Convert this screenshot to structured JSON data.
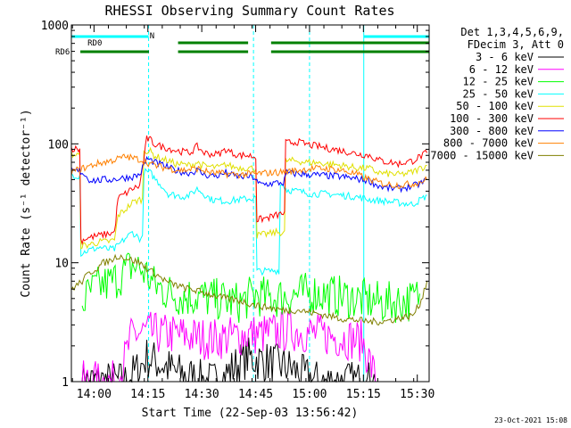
{
  "chart_data": {
    "type": "line",
    "title": "RHESSI Observing Summary Count Rates",
    "xlabel": "Start Time (22-Sep-03 13:56:42)",
    "ylabel": "Count Rate (s⁻¹ detector⁻¹)",
    "yscale": "log",
    "ylim": [
      1,
      1000
    ],
    "xlim_min": [
      -3,
      64
    ],
    "x_ticks": [
      {
        "label": "14:00",
        "min": 3.3
      },
      {
        "label": "14:15",
        "min": 18.3
      },
      {
        "label": "14:30",
        "min": 33.3
      },
      {
        "label": "14:45",
        "min": 48.3
      },
      {
        "label": "15:00",
        "min": 63.3
      },
      {
        "label": "15:15",
        "min": 78.3
      },
      {
        "label": "15:30",
        "min": 93.3
      }
    ],
    "y_ticks": [
      {
        "label": "1",
        "value": 1
      },
      {
        "label": "10",
        "value": 10
      },
      {
        "label": "100",
        "value": 100
      },
      {
        "label": "1000",
        "value": 1000
      }
    ],
    "legend_header": [
      "Det 1,3,4,5,6,9,",
      "FDecim 3, Att 0"
    ],
    "legend_placement": "right",
    "timestamp": "23-Oct-2021 15:08",
    "flags": [
      {
        "label": "N",
        "color": "#00ffff",
        "segments": [
          [
            -3,
            18.5
          ],
          [
            78.4,
            96.6
          ]
        ]
      },
      {
        "label": "RD0",
        "color": "#008000",
        "segments": [
          [
            -0.5,
            18.6
          ],
          [
            26.7,
            46.2
          ],
          [
            52.6,
            96.6
          ]
        ]
      },
      {
        "label": "RD6",
        "color": "#008000",
        "segments": [
          [
            -0.5,
            18.6
          ],
          [
            26.7,
            46.2
          ],
          [
            52.6,
            96.6
          ]
        ]
      }
    ],
    "night_markers": [
      -3,
      18.5,
      47.7,
      63.3,
      78.4,
      96.6
    ],
    "series": [
      {
        "name": "3 - 6 keV",
        "color": "#000000",
        "x": [
          0,
          4,
          8,
          10,
          12,
          16,
          18,
          20,
          22,
          26,
          30,
          34,
          38,
          42,
          46,
          50,
          54,
          58,
          62,
          66,
          70,
          74,
          78,
          82
        ],
        "y": [
          1,
          1,
          1,
          1,
          1,
          1.3,
          1.6,
          1.5,
          1.4,
          1.2,
          1.1,
          1,
          1,
          1.3,
          1.6,
          1.5,
          1.4,
          1.3,
          1.1,
          1,
          1,
          1,
          1,
          1
        ]
      },
      {
        "name": "6 - 12 keV",
        "color": "#ff00ff",
        "x": [
          0,
          10,
          14,
          18,
          22,
          26,
          30,
          34,
          38,
          42,
          46,
          50,
          54,
          58,
          62,
          66,
          70,
          74,
          78,
          82
        ],
        "y": [
          1,
          1,
          2.5,
          2.6,
          2.5,
          2.5,
          2.4,
          2.3,
          2.3,
          2.4,
          2.5,
          2.5,
          2.6,
          2.7,
          2.6,
          2.5,
          2.4,
          2.3,
          2.2,
          1
        ]
      },
      {
        "name": "12 - 25 keV",
        "color": "#00ff00",
        "x": [
          0,
          2,
          4,
          6,
          8,
          10,
          12,
          14,
          16,
          18,
          20,
          24,
          28,
          32,
          36,
          40,
          44,
          48,
          52,
          56,
          60,
          64,
          68,
          72,
          76,
          80,
          84,
          88,
          92,
          94
        ],
        "y": [
          4.5,
          5.5,
          6.2,
          6.5,
          6.8,
          7.5,
          8.5,
          9.5,
          9.0,
          8.0,
          6.5,
          5.6,
          5.2,
          5.2,
          5.0,
          4.8,
          4.6,
          5.4,
          5.0,
          5.2,
          5.4,
          5.6,
          5.4,
          5.2,
          5.0,
          4.8,
          4.6,
          4.7,
          4.8,
          5.5
        ]
      },
      {
        "name": "25 - 50 keV",
        "color": "#00ffff",
        "x": [
          -3,
          -1,
          0,
          1,
          3,
          5,
          7,
          9,
          10,
          12,
          14,
          16,
          18,
          19,
          20,
          22,
          24,
          28,
          30,
          32,
          36,
          40,
          44,
          48,
          49,
          52,
          54,
          56,
          57,
          60,
          62,
          64,
          68,
          72,
          76,
          80,
          84,
          88,
          92,
          95,
          96
        ],
        "y": [
          55,
          54,
          12,
          12.5,
          13,
          13.5,
          13,
          13,
          14,
          16,
          18,
          16,
          58,
          57,
          52,
          45,
          38,
          36,
          37,
          42,
          34,
          33,
          34,
          35,
          8.5,
          8.5,
          8.6,
          45,
          41,
          40,
          39,
          38,
          38,
          37,
          36,
          34,
          33,
          32,
          31,
          35,
          37
        ]
      },
      {
        "name": "50 - 100 keV",
        "color": "#e0e000",
        "x": [
          -3,
          -1,
          0,
          1,
          3,
          5,
          7,
          9,
          10,
          12,
          14,
          16,
          18,
          19,
          20,
          22,
          24,
          26,
          28,
          30,
          32,
          34,
          36,
          38,
          40,
          42,
          44,
          46,
          48,
          49,
          52,
          54,
          56,
          57,
          60,
          62,
          64,
          66,
          68,
          72,
          76,
          80,
          82,
          84,
          86,
          88,
          90,
          92,
          94,
          96
        ],
        "y": [
          82,
          80,
          14,
          14,
          14.5,
          15,
          15,
          15.5,
          25,
          28,
          32,
          34,
          88,
          86,
          80,
          75,
          72,
          68,
          67,
          66,
          70,
          65,
          64,
          63,
          67,
          64,
          63,
          63,
          62,
          17,
          17.5,
          18,
          18,
          72,
          72,
          70,
          70,
          69,
          68,
          66,
          63,
          62,
          58,
          56,
          56,
          55,
          56,
          58,
          62,
          66
        ]
      },
      {
        "name": "100 - 300 keV",
        "color": "#ff0000",
        "x": [
          -3,
          -1,
          0,
          1,
          3,
          5,
          7,
          9,
          10,
          12,
          14,
          16,
          18,
          19,
          20,
          22,
          24,
          26,
          28,
          30,
          32,
          34,
          36,
          38,
          40,
          42,
          44,
          46,
          48,
          49,
          52,
          54,
          56,
          57,
          60,
          62,
          64,
          66,
          68,
          72,
          76,
          80,
          82,
          84,
          86,
          88,
          90,
          92,
          94,
          96
        ],
        "y": [
          92,
          90,
          15.5,
          16,
          16.5,
          17,
          17.5,
          18,
          35,
          38,
          42,
          44,
          110,
          108,
          100,
          95,
          92,
          88,
          86,
          84,
          95,
          84,
          82,
          82,
          90,
          83,
          80,
          80,
          78,
          23,
          24,
          25,
          26,
          102,
          104,
          100,
          97,
          95,
          92,
          88,
          83,
          80,
          74,
          71,
          70,
          68,
          70,
          72,
          78,
          84
        ]
      },
      {
        "name": "300 - 800 keV",
        "color": "#0000ff",
        "x": [
          -3,
          0,
          2,
          4,
          6,
          8,
          10,
          12,
          14,
          16,
          18,
          19,
          20,
          22,
          24,
          26,
          28,
          30,
          32,
          34,
          36,
          38,
          40,
          42,
          44,
          46,
          48,
          49,
          52,
          54,
          56,
          57,
          60,
          64,
          68,
          72,
          76,
          80,
          82,
          84,
          86,
          88,
          90,
          92,
          94,
          96
        ],
        "y": [
          60,
          58,
          50,
          49,
          50,
          50,
          51,
          52,
          53,
          55,
          75,
          73,
          70,
          67,
          63,
          60,
          58,
          57,
          60,
          55,
          54,
          54,
          57,
          54,
          53,
          53,
          52,
          46,
          46,
          47,
          47,
          57,
          56,
          55,
          54,
          53,
          51,
          49,
          45,
          43,
          42,
          42,
          43,
          44,
          46,
          50
        ]
      },
      {
        "name": "800 - 7000 keV",
        "color": "#ff8000",
        "x": [
          -3,
          0,
          4,
          8,
          12,
          16,
          18,
          20,
          24,
          28,
          32,
          36,
          40,
          44,
          48,
          52,
          56,
          60,
          64,
          68,
          72,
          76,
          80,
          84,
          88,
          92,
          96
        ],
        "y": [
          58,
          62,
          68,
          72,
          78,
          74,
          70,
          66,
          62,
          60,
          62,
          57,
          56,
          55,
          56,
          57,
          58,
          60,
          62,
          62,
          60,
          56,
          50,
          46,
          45,
          46,
          50
        ]
      },
      {
        "name": "7000 - 15000 keV",
        "color": "#808000",
        "x": [
          -3,
          0,
          2,
          4,
          6,
          8,
          10,
          12,
          14,
          16,
          18,
          20,
          24,
          28,
          32,
          36,
          40,
          44,
          48,
          52,
          56,
          60,
          64,
          68,
          72,
          76,
          80,
          84,
          88,
          92,
          94,
          96
        ],
        "y": [
          6,
          7,
          8.2,
          9,
          10,
          10.5,
          11.5,
          11,
          10.5,
          10,
          9,
          8.2,
          6.8,
          6.2,
          5.8,
          5.4,
          5.0,
          4.8,
          4.4,
          4.2,
          4.0,
          4.0,
          3.8,
          3.6,
          3.4,
          3.3,
          3.2,
          3.2,
          3.4,
          3.6,
          4.5,
          7.0
        ]
      }
    ]
  }
}
